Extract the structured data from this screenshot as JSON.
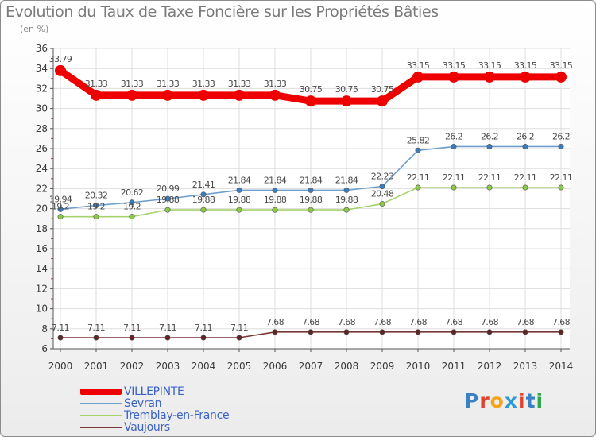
{
  "header": {
    "title": "Evolution du Taux de Taxe Foncière sur les Propriétés Bâties",
    "subtitle": "(en %)"
  },
  "legend": {
    "items": [
      {
        "label": "VILLEPINTE"
      },
      {
        "label": "Sevran"
      },
      {
        "label": "Tremblay-en-France"
      },
      {
        "label": "Vaujours"
      }
    ]
  },
  "logo": {
    "text": "Proxiti",
    "letters": [
      "P",
      "r",
      "o",
      "x",
      "i",
      "t",
      "i"
    ],
    "colors": [
      "#3b82c4",
      "#e0422b",
      "#f2a51a",
      "#2a9ad6",
      "#e0422b",
      "#3b82c4",
      "#2aa84a"
    ]
  },
  "chart_data": {
    "type": "line",
    "title": "Evolution du Taux de Taxe Foncière sur les Propriétés Bâties",
    "ylabel": "(en %)",
    "x": [
      "2000",
      "2001",
      "2002",
      "2003",
      "2004",
      "2005",
      "2006",
      "2007",
      "2008",
      "2009",
      "2010",
      "2011",
      "2012",
      "2013",
      "2014"
    ],
    "ylim": [
      6,
      36
    ],
    "yticks": [
      6,
      8,
      10,
      12,
      14,
      16,
      18,
      20,
      22,
      24,
      26,
      28,
      30,
      32,
      34,
      36
    ],
    "grid": true,
    "legend_position": "bottom-left",
    "series": [
      {
        "name": "VILLEPINTE",
        "color": "#ee0000",
        "values": [
          33.79,
          31.33,
          31.33,
          31.33,
          31.33,
          31.33,
          31.33,
          30.75,
          30.75,
          30.75,
          33.15,
          33.15,
          33.15,
          33.15,
          33.15
        ],
        "labels": [
          "33.79",
          "31.33",
          "31.33",
          "31.33",
          "31.33",
          "31.33",
          "31.33",
          "30.75",
          "30.75",
          "30.75",
          "33.15",
          "33.15",
          "33.15",
          "33.15",
          "33.15"
        ]
      },
      {
        "name": "Sevran",
        "color": "#6fa0cc",
        "values": [
          19.94,
          20.32,
          20.62,
          20.99,
          21.41,
          21.84,
          21.84,
          21.84,
          21.84,
          22.23,
          25.82,
          26.2,
          26.2,
          26.2,
          26.2
        ],
        "labels": [
          "19.94",
          "20.32",
          "20.62",
          "20.99",
          "21.41",
          "21.84",
          "21.84",
          "21.84",
          "21.84",
          "22.23",
          "25.82",
          "26.2",
          "26.2",
          "26.2",
          "26.2"
        ]
      },
      {
        "name": "Tremblay-en-France",
        "color": "#a6d36b",
        "values": [
          19.2,
          19.2,
          19.2,
          19.88,
          19.88,
          19.88,
          19.88,
          19.88,
          19.88,
          20.48,
          22.11,
          22.11,
          22.11,
          22.11,
          22.11
        ],
        "labels": [
          "19.2",
          "19.2",
          "19.2",
          "19.88",
          "19.88",
          "19.88",
          "19.88",
          "19.88",
          "19.88",
          "20.48",
          "22.11",
          "22.11",
          "22.11",
          "22.11",
          "22.11"
        ]
      },
      {
        "name": "Vaujours",
        "color": "#7a3535",
        "values": [
          7.11,
          7.11,
          7.11,
          7.11,
          7.11,
          7.11,
          7.68,
          7.68,
          7.68,
          7.68,
          7.68,
          7.68,
          7.68,
          7.68,
          7.68
        ],
        "labels": [
          "7.11",
          "7.11",
          "7.11",
          "7.11",
          "7.11",
          "7.11",
          "7.68",
          "7.68",
          "7.68",
          "7.68",
          "7.68",
          "7.68",
          "7.68",
          "7.68",
          "7.68"
        ]
      }
    ]
  }
}
